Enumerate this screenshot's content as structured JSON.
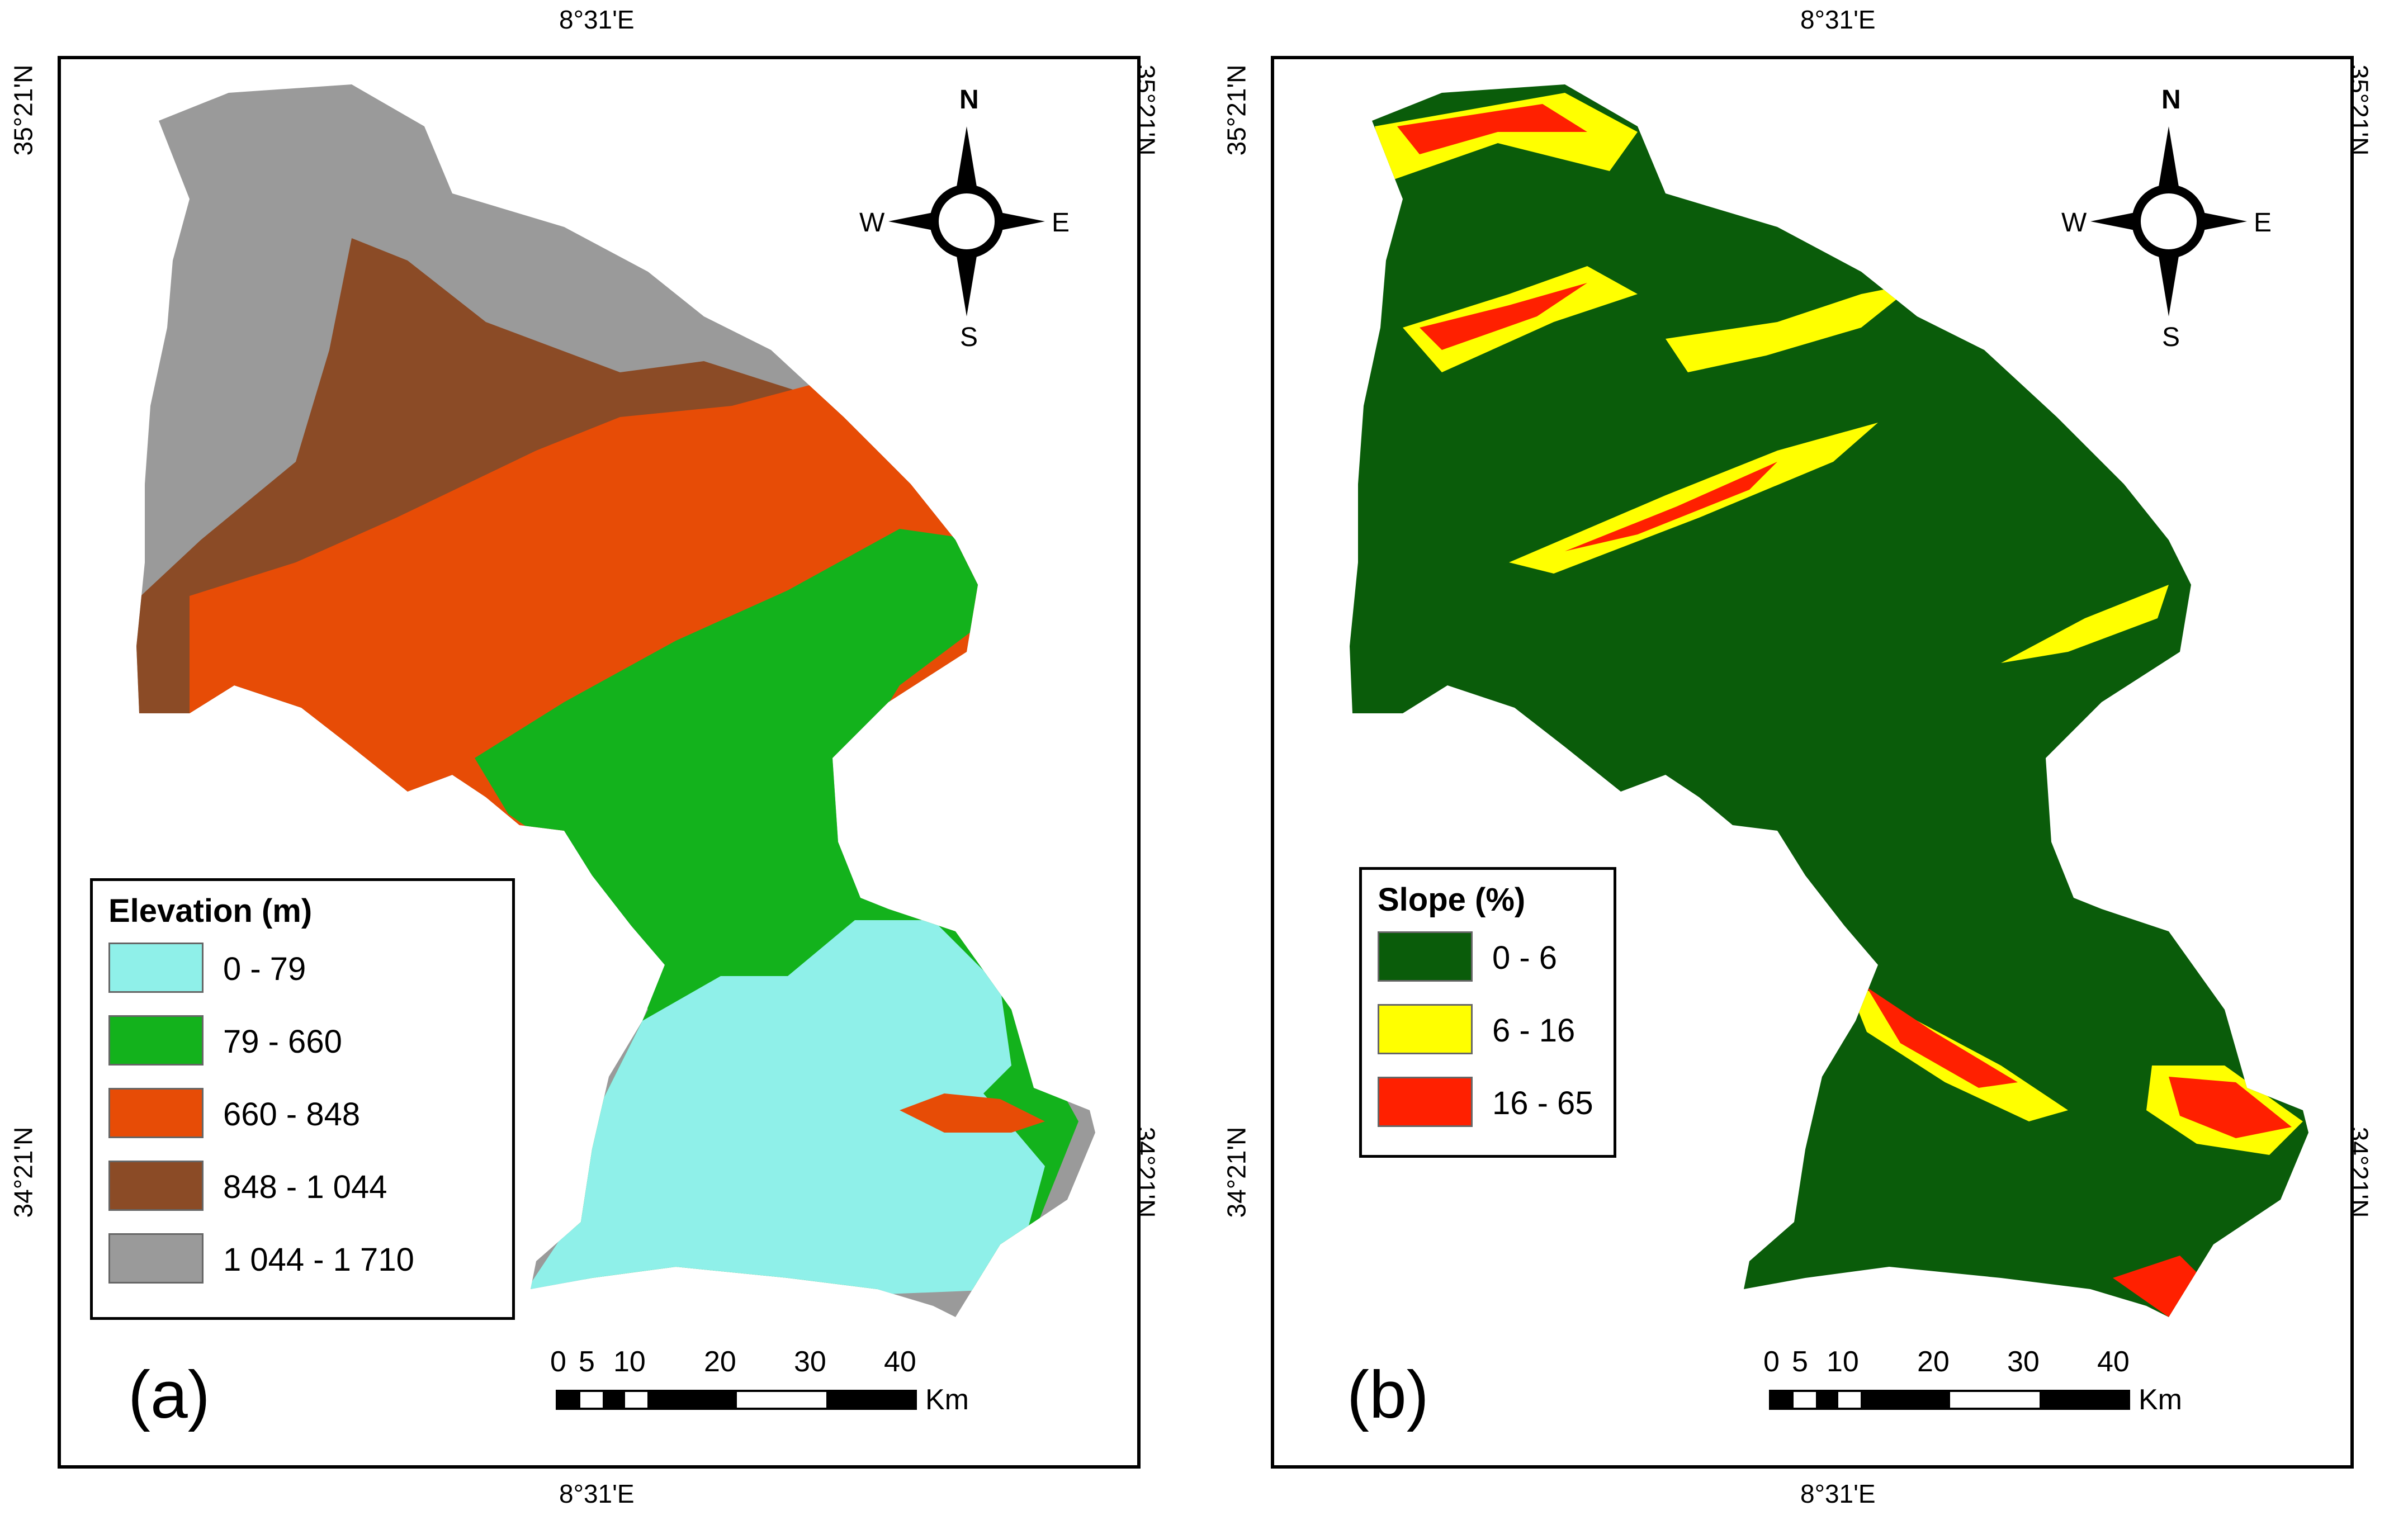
{
  "panels": [
    {
      "letter": "(a)",
      "legend_title": "Elevation (m)",
      "legend_items": [
        {
          "label": "0 - 79",
          "color": "#8ff0e9"
        },
        {
          "label": "79  - 660",
          "color": "#13b21c"
        },
        {
          "label": "660 - 848",
          "color": "#e74c06"
        },
        {
          "label": "848 - 1 044",
          "color": "#8b4b26"
        },
        {
          "label": "1 044 - 1 710",
          "color": "#9a9a9a"
        }
      ]
    },
    {
      "letter": "(b)",
      "legend_title": "Slope (%)",
      "legend_items": [
        {
          "label": "0 - 6",
          "color": "#0a5c0a"
        },
        {
          "label": "6 - 16",
          "color": "#ffff00"
        },
        {
          "label": "16 - 65",
          "color": "#ff2000"
        }
      ]
    }
  ],
  "grid": {
    "lon_label": "8°31'E",
    "lat_top": "35°21'N",
    "lat_bottom": "34°21'N"
  },
  "compass": {
    "n": "N",
    "s": "S",
    "e": "E",
    "w": "W"
  },
  "scale": {
    "ticks": [
      "0",
      "5",
      "10",
      "20",
      "30",
      "40"
    ],
    "unit": "Km"
  }
}
